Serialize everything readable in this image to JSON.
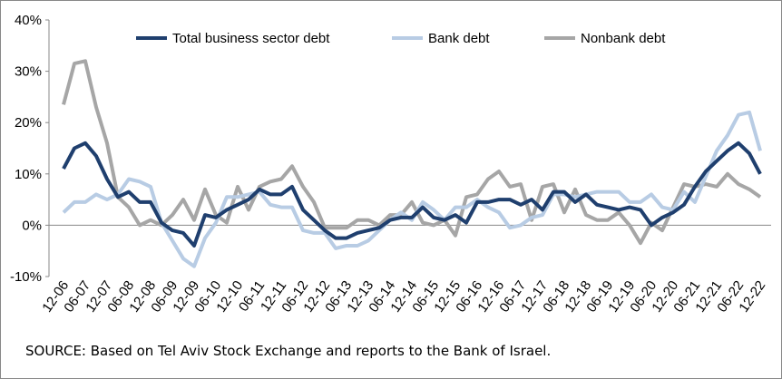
{
  "chart_data": {
    "type": "line",
    "categories": [
      "12-06",
      null,
      "06-07",
      null,
      "12-07",
      null,
      "06-08",
      null,
      "12-08",
      null,
      "06-09",
      null,
      "12-09",
      null,
      "06-10",
      null,
      "12-10",
      null,
      "06-11",
      null,
      "12-11",
      null,
      "06-12",
      null,
      "12-12",
      null,
      "06-13",
      null,
      "12-13",
      null,
      "06-14",
      null,
      "12-14",
      null,
      "06-15",
      null,
      "12-15",
      null,
      "06-16",
      null,
      "12-16",
      null,
      "06-17",
      null,
      "12-17",
      null,
      "06-18",
      null,
      "12-18",
      null,
      "06-19",
      null,
      "12-19",
      null,
      "06-20",
      null,
      "12-20",
      null,
      "06-21",
      null,
      "12-21",
      null,
      "06-22",
      null,
      "12-22"
    ],
    "series": [
      {
        "name": "Total business sector debt",
        "color": "#1f3f6e",
        "values": [
          11,
          15,
          16,
          13.5,
          9,
          5.5,
          6.5,
          4.5,
          4.5,
          0.5,
          -1,
          -1.5,
          -4,
          2,
          1.5,
          3,
          4,
          5,
          7,
          6,
          6,
          7.5,
          3,
          1,
          -1,
          -2.5,
          -2.5,
          -1.5,
          -1,
          -0.5,
          1,
          1.5,
          1.5,
          3.5,
          1.5,
          1,
          2,
          0.5,
          4.5,
          4.5,
          5,
          5,
          4,
          5,
          3,
          6.5,
          6.5,
          4.5,
          6,
          4,
          3.5,
          3,
          3.5,
          3,
          0,
          1.5,
          2.5,
          4,
          7.5,
          10.5,
          12.5,
          14.5,
          16,
          14,
          10
        ]
      },
      {
        "name": "Bank debt",
        "color": "#b8cce4",
        "values": [
          2.5,
          4.5,
          4.5,
          6,
          5,
          6,
          9,
          8.5,
          7.5,
          0.5,
          -3,
          -6.5,
          -8,
          -2.5,
          0.5,
          5.5,
          5.5,
          6,
          6.5,
          4,
          3.5,
          3.5,
          -1,
          -1.5,
          -1.5,
          -4.5,
          -4,
          -4,
          -3,
          -1,
          1,
          2.5,
          1,
          4.5,
          3,
          1,
          3.5,
          3.5,
          5,
          3.5,
          2.5,
          -0.5,
          0,
          1.5,
          2,
          6,
          6,
          5.5,
          6,
          6.5,
          6.5,
          6.5,
          4.5,
          4.5,
          6,
          3.5,
          3,
          6.5,
          4.5,
          9.5,
          14.5,
          17.5,
          21.5,
          22,
          14.5
        ]
      },
      {
        "name": "Nonbank debt",
        "color": "#a6a6a6",
        "values": [
          23.5,
          31.5,
          32,
          23,
          16,
          5.5,
          3.5,
          0,
          1,
          0,
          2,
          5,
          1,
          7,
          2,
          0.5,
          7.5,
          3,
          7.5,
          8.5,
          9,
          11.5,
          7.5,
          4.5,
          -0.5,
          -0.5,
          -0.5,
          1,
          1,
          0,
          2,
          2,
          4.5,
          0.5,
          0,
          1,
          -2,
          5.5,
          6,
          9,
          10.5,
          7.5,
          8,
          1,
          7.5,
          8,
          2.5,
          7,
          2,
          1,
          1,
          2.5,
          0,
          -3.5,
          0.5,
          -1,
          3.5,
          8,
          7.5,
          8,
          7.5,
          10,
          8,
          7,
          5.5
        ]
      }
    ],
    "ylim": [
      -10,
      40
    ],
    "yticks": [
      {
        "value": -10,
        "label": "-10%"
      },
      {
        "value": 0,
        "label": "0%"
      },
      {
        "value": 10,
        "label": "10%"
      },
      {
        "value": 20,
        "label": "20%"
      },
      {
        "value": 30,
        "label": "30%"
      },
      {
        "value": 40,
        "label": "40%"
      }
    ],
    "legend": "top",
    "source": "SOURCE: Based on Tel Aviv Stock Exchange and reports to the Bank of Israel."
  }
}
